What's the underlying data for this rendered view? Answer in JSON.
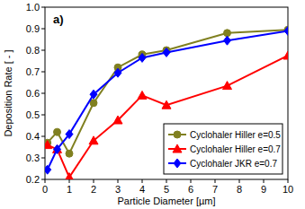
{
  "chart_data": {
    "type": "line",
    "annotation": "a)",
    "x_label": "Particle Diameter [µm]",
    "y_label": "Deposition Rate [ - ]",
    "x": [
      0.1,
      0.5,
      1,
      2,
      3,
      4,
      5,
      7.5,
      10
    ],
    "series": [
      {
        "name": "Cyclohaler Hiller e=0.5",
        "color": "#808020",
        "marker": "circle",
        "line_style": "solid",
        "values": [
          0.37,
          0.42,
          0.32,
          0.555,
          0.72,
          0.78,
          0.8,
          0.88,
          0.895
        ]
      },
      {
        "name": "Cyclohaler Hiller e=0.7",
        "color": "#ff0000",
        "marker": "triangle",
        "line_style": "solid",
        "values": [
          0.36,
          0.34,
          0.21,
          0.38,
          0.475,
          0.59,
          0.545,
          0.635,
          0.775
        ]
      },
      {
        "name": "Cyclohaler JKR e=0.7",
        "color": "#0000ff",
        "marker": "diamond",
        "line_style": "solid",
        "values": [
          0.245,
          0.34,
          0.41,
          0.595,
          0.695,
          0.765,
          0.79,
          0.845,
          0.89
        ]
      }
    ],
    "xlim": [
      0,
      10
    ],
    "xticks": [
      0,
      1,
      2,
      3,
      4,
      5,
      6,
      7,
      8,
      9,
      10
    ],
    "ylim": [
      0.2,
      1.0
    ],
    "yticks": [
      0.2,
      0.3,
      0.4,
      0.5,
      0.6,
      0.7,
      0.8,
      0.9,
      {
        "value": 1,
        "label": "1.0"
      }
    ],
    "grid": false,
    "legend": "bottom-right"
  }
}
